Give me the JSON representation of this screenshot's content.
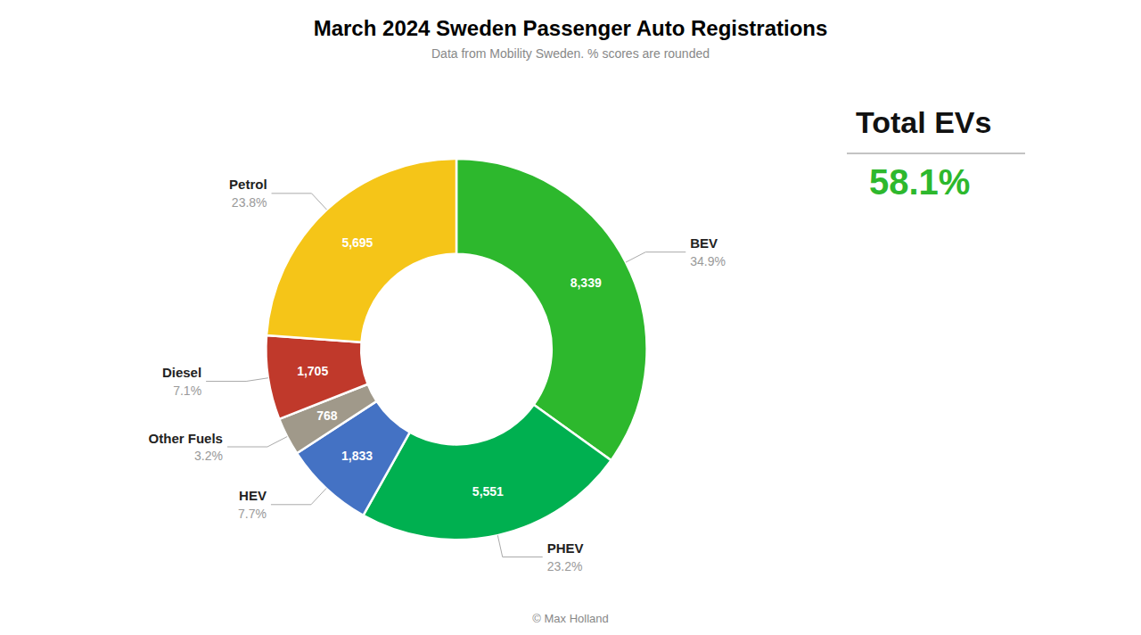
{
  "chart_data": {
    "type": "pie",
    "title": "March 2024 Sweden Passenger Auto Registrations",
    "subtitle": "Data from Mobility Sweden. % scores are rounded",
    "footer": "© Max Holland",
    "categories": [
      "BEV",
      "PHEV",
      "HEV",
      "Other Fuels",
      "Diesel",
      "Petrol"
    ],
    "values": [
      8339,
      5551,
      1833,
      768,
      1705,
      5695
    ],
    "value_labels": [
      "8,339",
      "5,551",
      "1,833",
      "768",
      "1,705",
      "5,695"
    ],
    "shares": [
      34.9,
      23.2,
      7.7,
      3.2,
      7.1,
      23.8
    ],
    "share_labels": [
      "34.9%",
      "23.2%",
      "7.7%",
      "3.2%",
      "7.1%",
      "23.8%"
    ],
    "colors": [
      "#2db82d",
      "#00b050",
      "#4472c4",
      "#a0998a",
      "#c0392b",
      "#f5c518"
    ],
    "data_labels": true,
    "legend": false,
    "annotations": [
      {
        "text": "Total EVs",
        "value": 58.1,
        "value_label": "58.1%",
        "color": "#2db82d"
      }
    ]
  }
}
